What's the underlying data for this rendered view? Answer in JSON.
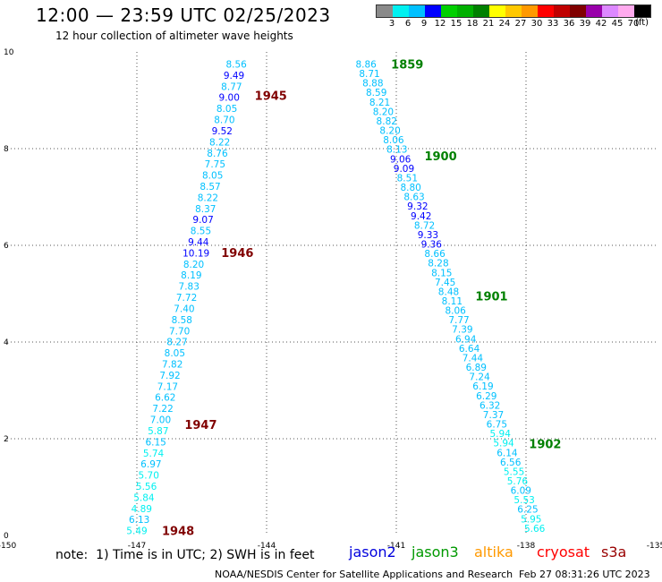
{
  "header": {
    "title": "12:00 — 23:59 UTC 02/25/2023",
    "subtitle": "12 hour collection of altimeter wave heights"
  },
  "legend": {
    "unit": "(ft)",
    "labels": [
      "3",
      "6",
      "9",
      "12",
      "15",
      "18",
      "21",
      "24",
      "27",
      "30",
      "33",
      "36",
      "39",
      "42",
      "45",
      "70"
    ],
    "colors": [
      "#8a8a8a",
      "#00f0f0",
      "#00c0ff",
      "#0000ff",
      "#00d000",
      "#00b000",
      "#008000",
      "#ffff00",
      "#ffc800",
      "#ff9900",
      "#ff0000",
      "#c00000",
      "#800000",
      "#9900aa",
      "#dd88ff",
      "#ffaaee",
      "#000000"
    ]
  },
  "chart_data": {
    "type": "scatter",
    "xlim": [
      -150,
      -135
    ],
    "ylim": [
      0,
      10
    ],
    "x_ticks": [
      "-150",
      "-147",
      "-144",
      "-141",
      "-138",
      "-135"
    ],
    "y_ticks": [
      "0",
      "2",
      "4",
      "6",
      "8",
      "10"
    ],
    "grid": true,
    "color_scale_ft": [
      3,
      6,
      9,
      12,
      15,
      18,
      21,
      24,
      27,
      30,
      33,
      36,
      39,
      42,
      45,
      70
    ],
    "tracks": [
      {
        "x_top": -144.7,
        "x_bottom": -147.0,
        "y_top": 9.75,
        "y_bottom": 0.1,
        "values": [
          "8.56",
          "9.49",
          "8.77",
          "9.00",
          "8.05",
          "8.70",
          "9.52",
          "8.22",
          "8.76",
          "7.75",
          "8.05",
          "8.57",
          "8.22",
          "8.37",
          "9.07",
          "8.55",
          "9.44",
          "10.19",
          "8.20",
          "8.19",
          "7.83",
          "7.72",
          "7.40",
          "8.58",
          "7.70",
          "8.27",
          "8.05",
          "7.82",
          "7.92",
          "7.17",
          "6.62",
          "7.22",
          "7.00",
          "5.87",
          "6.15",
          "5.74",
          "6.97",
          "5.70",
          "5.56",
          "5.84",
          "4.89",
          "6.13",
          "5.49"
        ],
        "time_labels": [
          {
            "label": "1945",
            "y": 9.1
          },
          {
            "label": "1946",
            "y": 5.85
          },
          {
            "label": "1947",
            "y": 2.3
          },
          {
            "label": "1948",
            "y": 0.1
          }
        ]
      },
      {
        "x_top": -141.7,
        "x_bottom": -137.8,
        "y_top": 9.75,
        "y_bottom": 0.15,
        "values": [
          "8.86",
          "8.71",
          "8.88",
          "8.59",
          "8.21",
          "8.20",
          "8.82",
          "8.20",
          "8.06",
          "8.13",
          "9.06",
          "9.09",
          "8.51",
          "8.80",
          "8.63",
          "9.32",
          "9.42",
          "8.72",
          "9.33",
          "9.36",
          "8.66",
          "8.28",
          "8.15",
          "7.45",
          "8.48",
          "8.11",
          "8.06",
          "7.77",
          "7.39",
          "6.94",
          "6.64",
          "7.44",
          "6.89",
          "7.24",
          "6.19",
          "6.29",
          "6.32",
          "7.37",
          "6.75",
          "5.94",
          "5.94",
          "6.14",
          "6.56",
          "5.55",
          "5.76",
          "6.09",
          "5.53",
          "6.25",
          "5.95",
          "5.66"
        ],
        "time_labels": [
          {
            "label": "1859",
            "y": 9.75
          },
          {
            "label": "1900",
            "y": 7.85
          },
          {
            "label": "1901",
            "y": 4.95
          },
          {
            "label": "1902",
            "y": 1.9
          }
        ]
      }
    ]
  },
  "footer": {
    "note": "note:  1) Time is in UTC; 2) SWH is in feet",
    "satellites": [
      {
        "name": "jason2",
        "color": "#0000dd"
      },
      {
        "name": "jason3",
        "color": "#009900"
      },
      {
        "name": "altika",
        "color": "#ff9900"
      },
      {
        "name": "cryosat",
        "color": "#ff0000"
      },
      {
        "name": "s3a",
        "color": "#990000"
      }
    ],
    "credit": "NOAA/NESDIS Center for Satellite Applications and Research",
    "timestamp": "Feb 27 08:31:26 UTC 2023"
  }
}
